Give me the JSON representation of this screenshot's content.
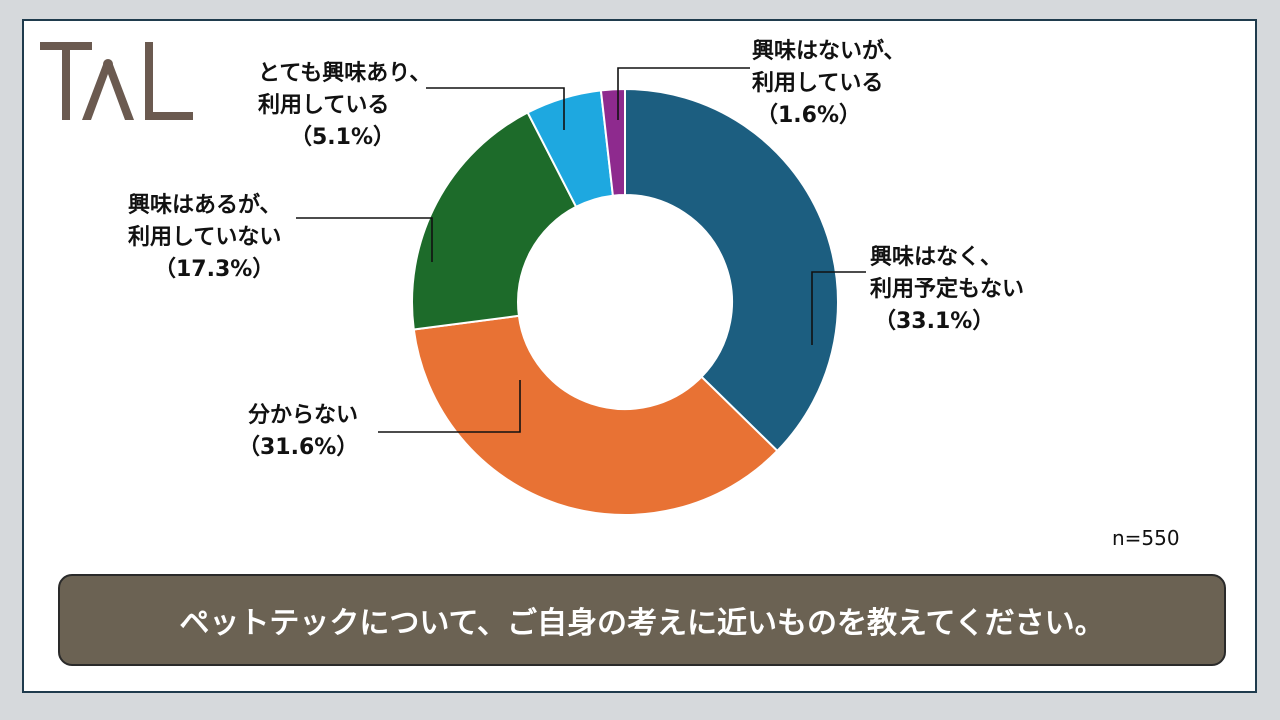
{
  "brand": {
    "logo_text": "TAL",
    "logo_color": "#6b5a50"
  },
  "question": "ペットテックについて、ご自身の考えに近いものを教えてください。",
  "sample_size": "n=550",
  "chart_data": {
    "type": "pie",
    "donut": true,
    "slices": [
      {
        "lines": [
          "興味はなく、",
          "利用予定もない"
        ],
        "pct_label": "（33.1%）",
        "value": 33.1,
        "color": "#1c5e80"
      },
      {
        "lines": [
          "分からない"
        ],
        "pct_label": "（31.6%）",
        "value": 31.6,
        "color": "#e87234"
      },
      {
        "lines": [
          "興味はあるが、",
          "利用していない"
        ],
        "pct_label": "（17.3%）",
        "value": 17.3,
        "color": "#1d6b2a"
      },
      {
        "lines": [
          "とても興味あり、",
          "利用している"
        ],
        "pct_label": "（5.1%）",
        "value": 5.1,
        "color": "#1ea8e0"
      },
      {
        "lines": [
          "興味はないが、",
          "利用している"
        ],
        "pct_label": "（1.6%）",
        "value": 1.6,
        "color": "#8e2a8e"
      }
    ]
  }
}
